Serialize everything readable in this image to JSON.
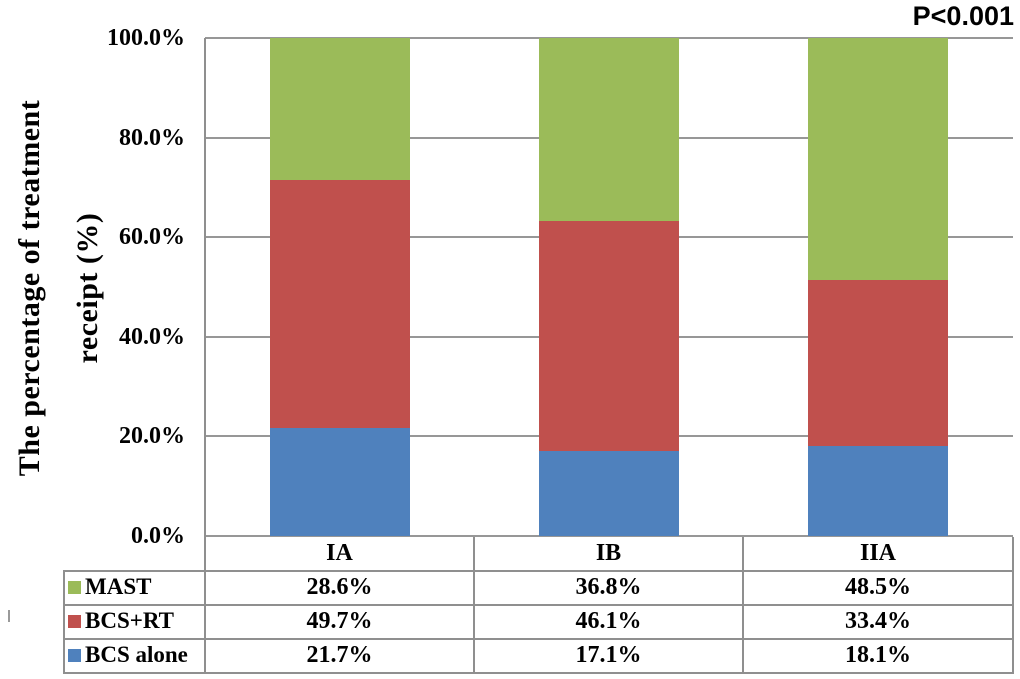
{
  "p_value_label": "P<0.001",
  "y_axis": {
    "title_line1": "The percentage of treatment",
    "title_line2": "receipt (%)",
    "ticks": [
      "100.0%",
      "80.0%",
      "60.0%",
      "40.0%",
      "20.0%",
      "0.0%"
    ]
  },
  "chart_data": {
    "type": "bar",
    "stacked": true,
    "title": "",
    "xlabel": "",
    "ylabel": "The percentage of treatment receipt (%)",
    "ylim": [
      0,
      100
    ],
    "grid": true,
    "annotation": "P<0.001",
    "legend_position": "bottom-table",
    "categories": [
      "IA",
      "IB",
      "IIA"
    ],
    "series": [
      {
        "name": "MAST",
        "color": "#9BBB59",
        "values": [
          28.6,
          36.8,
          48.5
        ],
        "labels": [
          "28.6%",
          "36.8%",
          "48.5%"
        ]
      },
      {
        "name": "BCS+RT",
        "color": "#C0504D",
        "values": [
          49.7,
          46.1,
          33.4
        ],
        "labels": [
          "49.7%",
          "46.1%",
          "33.4%"
        ]
      },
      {
        "name": "BCS alone",
        "color": "#4F81BD",
        "values": [
          21.7,
          17.1,
          18.1
        ],
        "labels": [
          "21.7%",
          "17.1%",
          "18.1%"
        ]
      }
    ],
    "stack_order_bottom_to_top": [
      "BCS alone",
      "BCS+RT",
      "MAST"
    ]
  },
  "colors": {
    "green": "#9BBB59",
    "red": "#C0504D",
    "blue": "#4F81BD",
    "gridline": "#979797",
    "table_border": "#8f8f8f",
    "text": "#000000",
    "background": "#ffffff"
  }
}
